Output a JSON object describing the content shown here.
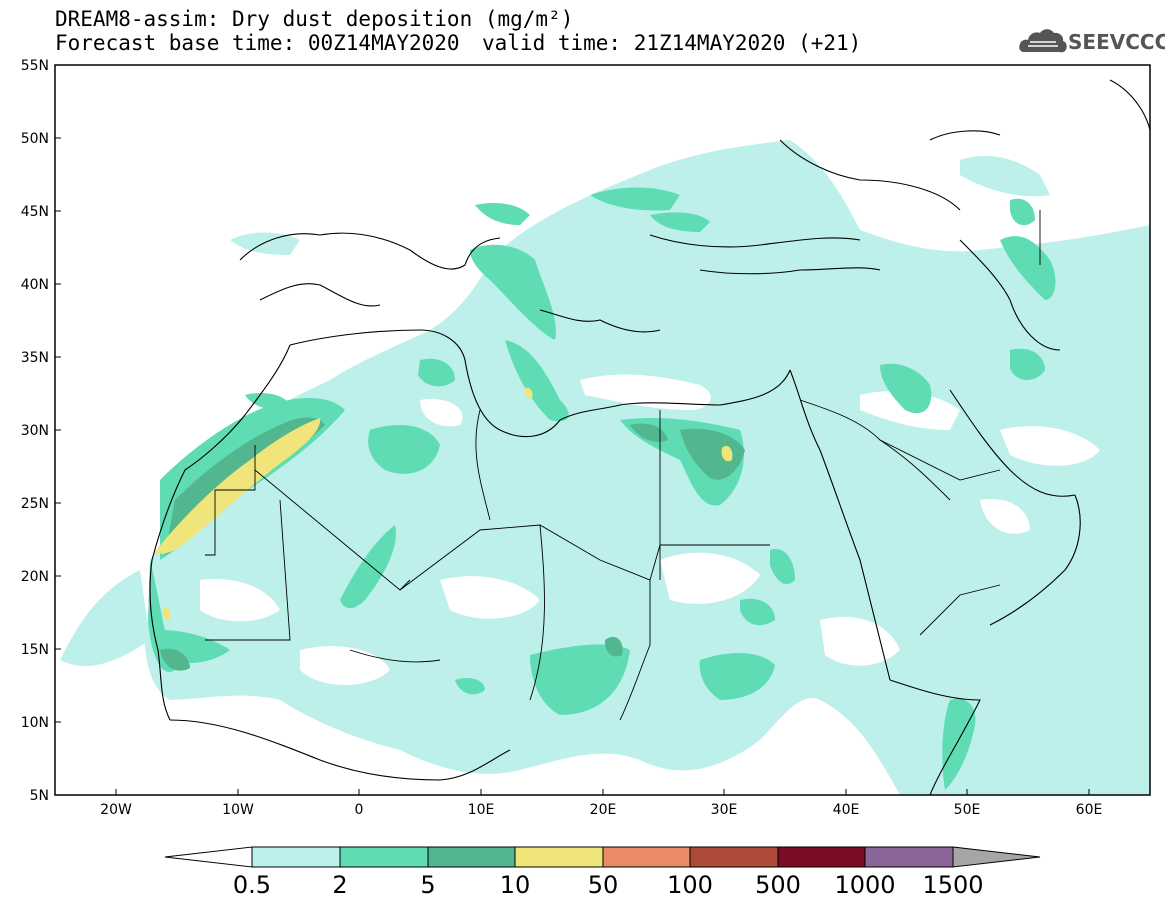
{
  "header": {
    "title": "DREAM8-assim: Dry dust deposition (mg/m²)",
    "base_time": "Forecast base time: 00Z14MAY2020",
    "valid_time": "valid time: 21Z14MAY2020 (+21)"
  },
  "logo": {
    "text": "SEEVCCC",
    "icon": "cloud-icon"
  },
  "map": {
    "lon_range": [
      -25,
      65
    ],
    "lat_range": [
      5,
      55
    ],
    "lat_labels": [
      "55N",
      "50N",
      "45N",
      "40N",
      "35N",
      "30N",
      "25N",
      "20N",
      "15N",
      "10N",
      "5N"
    ],
    "lon_labels": [
      "20W",
      "10W",
      "0",
      "10E",
      "20E",
      "30E",
      "40E",
      "50E",
      "60E"
    ],
    "colors": {
      "c1": "#bdf0ea",
      "c2": "#5fdcb4",
      "c3": "#52b78f",
      "c4": "#f0e57a",
      "land": "#ffffff",
      "line": "#000000"
    }
  },
  "colorbar": {
    "labels": [
      "0.5",
      "2",
      "5",
      "10",
      "50",
      "100",
      "500",
      "1000",
      "1500"
    ],
    "colors": [
      "#bdf0ea",
      "#5fdcb4",
      "#52b78f",
      "#f0e57a",
      "#e98b65",
      "#ad4a3a",
      "#7c0c25",
      "#8b6799"
    ],
    "under_color": "#ffffff",
    "over_color": "#a6a6a6"
  }
}
